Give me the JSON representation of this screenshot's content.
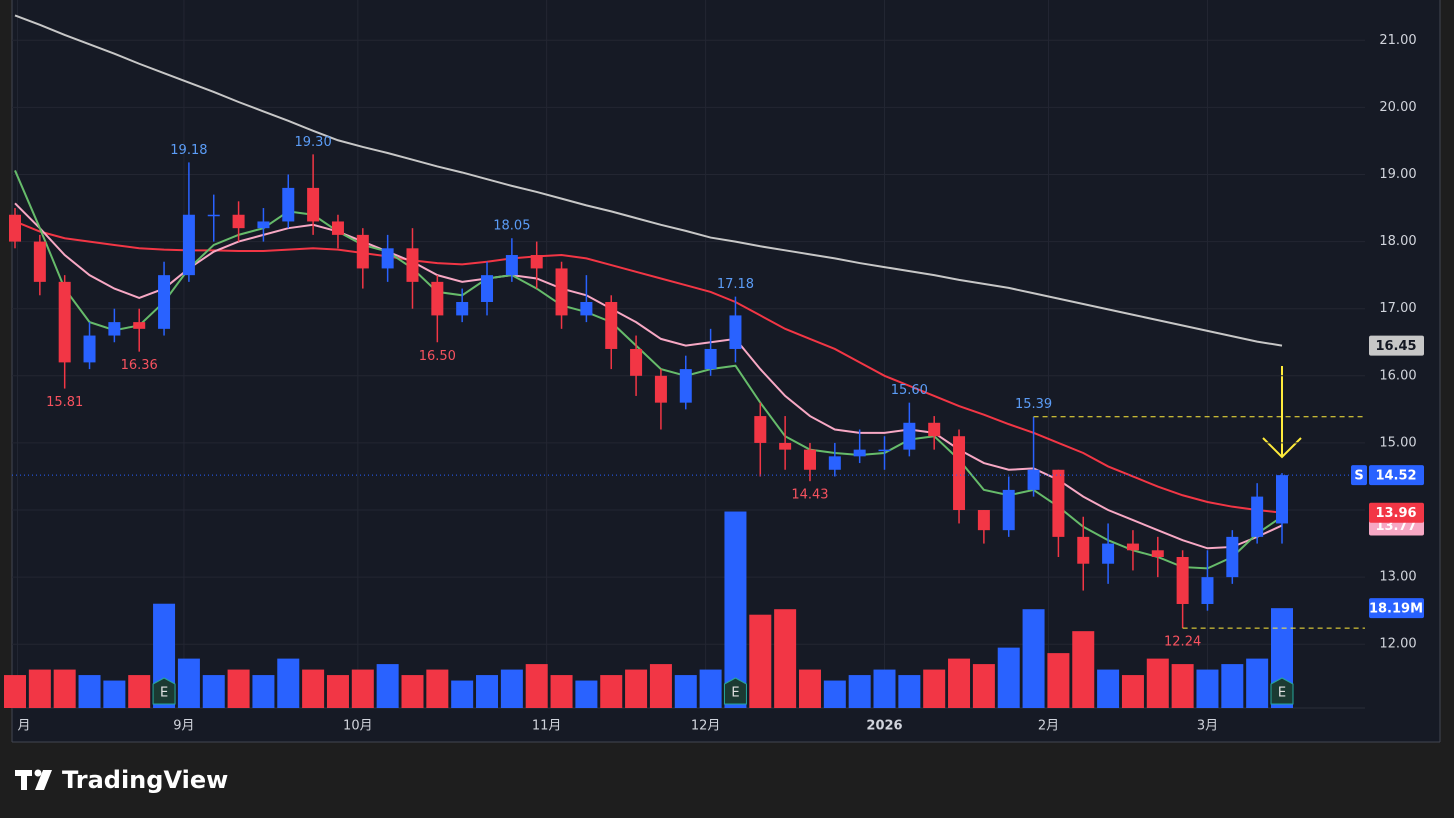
{
  "chart_data": {
    "type": "candlestick",
    "categories": [
      null,
      null,
      null,
      null,
      null,
      null,
      null,
      null,
      null,
      null,
      null,
      null,
      null,
      null,
      null,
      null,
      null,
      null,
      null,
      null,
      null,
      null,
      null,
      null,
      null,
      null,
      null,
      null,
      null,
      null,
      null,
      null,
      null,
      null,
      null,
      null,
      null,
      null,
      null,
      null,
      null,
      null,
      null,
      null,
      null,
      null,
      null,
      null,
      null,
      null,
      null,
      null
    ],
    "open": [
      18.4,
      18.0,
      17.4,
      16.2,
      16.6,
      16.8,
      16.7,
      17.5,
      18.4,
      18.4,
      18.2,
      18.3,
      18.8,
      18.3,
      18.1,
      17.6,
      17.9,
      17.4,
      16.9,
      17.1,
      17.5,
      17.8,
      17.6,
      16.9,
      17.1,
      16.4,
      16.0,
      15.6,
      16.1,
      16.4,
      15.4,
      15.0,
      14.9,
      14.6,
      14.8,
      14.9,
      14.9,
      15.3,
      15.1,
      14.0,
      13.7,
      14.3,
      14.6,
      13.6,
      13.2,
      13.5,
      13.4,
      13.3,
      12.6,
      13.0,
      13.6,
      13.8
    ],
    "high": [
      18.5,
      18.1,
      17.5,
      16.8,
      17.0,
      17.0,
      17.7,
      19.18,
      18.7,
      18.6,
      18.5,
      19.0,
      19.3,
      18.4,
      18.2,
      18.1,
      18.2,
      17.5,
      17.3,
      17.7,
      18.05,
      18.0,
      17.7,
      17.5,
      17.2,
      16.6,
      16.1,
      16.3,
      16.7,
      17.18,
      15.6,
      15.4,
      15.0,
      15.0,
      15.2,
      15.1,
      15.6,
      15.4,
      15.2,
      14.0,
      14.5,
      15.39,
      14.6,
      13.9,
      13.8,
      13.7,
      13.6,
      13.4,
      13.4,
      13.7,
      14.4,
      14.55
    ],
    "low": [
      17.9,
      17.2,
      15.81,
      16.1,
      16.5,
      16.36,
      16.6,
      17.4,
      18.0,
      18.0,
      18.0,
      18.2,
      18.1,
      17.9,
      17.3,
      17.4,
      17.0,
      16.5,
      16.8,
      16.9,
      17.4,
      17.3,
      16.7,
      16.8,
      16.1,
      15.7,
      15.2,
      15.5,
      16.0,
      16.2,
      14.5,
      14.6,
      14.43,
      14.5,
      14.7,
      14.6,
      14.8,
      14.9,
      13.8,
      13.5,
      13.6,
      14.2,
      13.3,
      12.8,
      12.9,
      13.1,
      13.0,
      12.24,
      12.5,
      12.9,
      13.5,
      13.5
    ],
    "close": [
      18.0,
      17.4,
      16.2,
      16.6,
      16.8,
      16.7,
      17.5,
      18.4,
      18.4,
      18.2,
      18.3,
      18.8,
      18.3,
      18.1,
      17.6,
      17.9,
      17.4,
      16.9,
      17.1,
      17.5,
      17.8,
      17.6,
      16.9,
      17.1,
      16.4,
      16.0,
      15.6,
      16.1,
      16.4,
      16.9,
      15.0,
      14.9,
      14.6,
      14.8,
      14.9,
      14.9,
      15.3,
      15.1,
      14.0,
      13.7,
      14.3,
      14.6,
      13.6,
      13.2,
      13.5,
      13.4,
      13.3,
      12.6,
      13.0,
      13.6,
      14.2,
      14.52
    ],
    "close_last_label": "14.52",
    "up_color": "#2962ff",
    "down_color": "#f23645",
    "volume": {
      "values": [
        6,
        7,
        7,
        6,
        5,
        6,
        19,
        9,
        6,
        7,
        6,
        9,
        7,
        6,
        7,
        8,
        6,
        7,
        5,
        6,
        7,
        8,
        6,
        5,
        6,
        7,
        8,
        6,
        7,
        35.8,
        17,
        18,
        7,
        5,
        6,
        7,
        6,
        7,
        9,
        8,
        11,
        18,
        10,
        14,
        7,
        6,
        9,
        8,
        7,
        8,
        9,
        18.19
      ],
      "last_label": "18.19M",
      "axis": "y2"
    },
    "lines": [
      {
        "color": "#c7c7c7",
        "last_label": "16.45",
        "values": [
          21.37,
          21.23,
          21.08,
          20.94,
          20.8,
          20.65,
          20.51,
          20.37,
          20.23,
          20.08,
          19.94,
          19.8,
          19.65,
          19.51,
          19.41,
          19.32,
          19.22,
          19.12,
          19.03,
          18.93,
          18.83,
          18.74,
          18.64,
          18.54,
          18.45,
          18.35,
          18.25,
          18.16,
          18.06,
          18.0,
          17.93,
          17.87,
          17.81,
          17.75,
          17.68,
          17.62,
          17.56,
          17.5,
          17.43,
          17.37,
          17.31,
          17.23,
          17.15,
          17.07,
          16.99,
          16.91,
          16.83,
          16.75,
          16.67,
          16.59,
          16.51,
          16.45
        ]
      },
      {
        "color": "#f23645",
        "last_label": "13.96",
        "values": [
          18.3,
          18.15,
          18.05,
          18.0,
          17.95,
          17.9,
          17.88,
          17.87,
          17.87,
          17.86,
          17.86,
          17.88,
          17.9,
          17.88,
          17.83,
          17.78,
          17.72,
          17.68,
          17.66,
          17.7,
          17.75,
          17.78,
          17.8,
          17.75,
          17.65,
          17.55,
          17.45,
          17.35,
          17.25,
          17.1,
          16.9,
          16.7,
          16.55,
          16.4,
          16.2,
          16.0,
          15.85,
          15.7,
          15.55,
          15.42,
          15.28,
          15.15,
          15.0,
          14.85,
          14.65,
          14.5,
          14.35,
          14.22,
          14.12,
          14.05,
          14.0,
          13.96
        ]
      },
      {
        "color": "#f7a8c4",
        "last_label": "13.77",
        "values": [
          18.57,
          18.2,
          17.8,
          17.5,
          17.3,
          17.16,
          17.3,
          17.6,
          17.85,
          18.0,
          18.1,
          18.2,
          18.25,
          18.15,
          18.0,
          17.85,
          17.7,
          17.5,
          17.4,
          17.45,
          17.5,
          17.45,
          17.3,
          17.2,
          17.0,
          16.8,
          16.55,
          16.45,
          16.5,
          16.55,
          16.1,
          15.7,
          15.4,
          15.2,
          15.15,
          15.15,
          15.2,
          15.15,
          14.9,
          14.7,
          14.6,
          14.62,
          14.45,
          14.2,
          14.0,
          13.85,
          13.7,
          13.55,
          13.43,
          13.45,
          13.6,
          13.77
        ]
      },
      {
        "color": "#66bb6a",
        "values": [
          19.06,
          18.2,
          17.3,
          16.8,
          16.68,
          16.75,
          17.1,
          17.6,
          17.95,
          18.1,
          18.2,
          18.45,
          18.4,
          18.15,
          17.95,
          17.85,
          17.6,
          17.25,
          17.2,
          17.45,
          17.5,
          17.3,
          17.05,
          16.95,
          16.8,
          16.45,
          16.1,
          16.0,
          16.1,
          16.15,
          15.6,
          15.1,
          14.9,
          14.85,
          14.82,
          14.85,
          15.05,
          15.1,
          14.75,
          14.3,
          14.22,
          14.3,
          14.05,
          13.75,
          13.55,
          13.4,
          13.3,
          13.15,
          13.13,
          13.3,
          13.65,
          13.9
        ]
      }
    ],
    "annotations": [
      {
        "index": 2,
        "label": "15.81",
        "color": "#f7525f"
      },
      {
        "index": 5,
        "label": "16.36",
        "color": "#f7525f"
      },
      {
        "index": 7,
        "label": "19.18",
        "color": "#5b9cf6"
      },
      {
        "index": 12,
        "label": "19.30",
        "color": "#5b9cf6"
      },
      {
        "index": 17,
        "label": "16.50",
        "color": "#f7525f"
      },
      {
        "index": 20,
        "label": "18.05",
        "color": "#5b9cf6"
      },
      {
        "index": 29,
        "label": "17.18",
        "color": "#5b9cf6"
      },
      {
        "index": 32,
        "label": "14.43",
        "color": "#f7525f"
      },
      {
        "index": 36,
        "label": "15.60",
        "color": "#5b9cf6"
      },
      {
        "index": 41,
        "label": "15.39",
        "color": "#5b9cf6",
        "dashed": true
      },
      {
        "index": 47,
        "label": "12.24",
        "color": "#f7525f",
        "dashed": true
      }
    ],
    "events": [
      {
        "index": 6,
        "label": "E"
      },
      {
        "index": 29,
        "label": "E"
      },
      {
        "index": 51,
        "label": "E"
      }
    ],
    "symbol_badge": "S",
    "ylim": [
      11.05,
      21.6
    ],
    "y2lim": [
      0,
      129
    ],
    "yticks": [
      {
        "value": 12,
        "label": "12.00"
      },
      {
        "value": 13,
        "label": "13.00"
      },
      {
        "value": 14,
        "label": "14.00"
      },
      {
        "value": 15,
        "label": "15.00"
      },
      {
        "value": 16,
        "label": "16.00"
      },
      {
        "value": 17,
        "label": "17.00"
      },
      {
        "value": 18,
        "label": "18.00"
      },
      {
        "value": 19,
        "label": "19.00"
      },
      {
        "value": 20,
        "label": "20.00"
      },
      {
        "value": 21,
        "label": "21.00"
      }
    ],
    "xticks": [
      {
        "value": 0.1,
        "label": "月"
      },
      {
        "value": 6.8,
        "label": "9月"
      },
      {
        "value": 13.8,
        "label": "10月"
      },
      {
        "value": 21.4,
        "label": "11月"
      },
      {
        "value": 27.8,
        "label": "12月"
      },
      {
        "value": 35.0,
        "label": "2026"
      },
      {
        "value": 41.6,
        "label": "2月"
      },
      {
        "value": 48.0,
        "label": "3月"
      }
    ],
    "grid": true
  },
  "footer": {
    "brand": "TradingView"
  }
}
